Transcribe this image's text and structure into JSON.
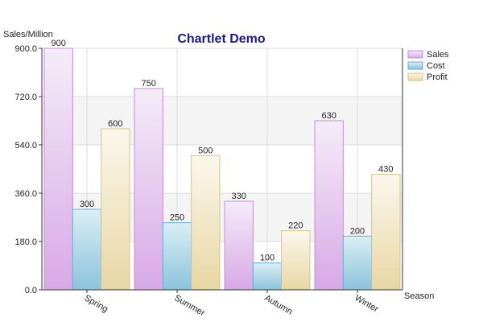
{
  "chart_data": {
    "type": "bar",
    "title": "Chartlet Demo",
    "ylabel": "Sales/Million",
    "xlabel": "Season",
    "categories": [
      "Spring",
      "Summer",
      "Autumn",
      "Winter"
    ],
    "series": [
      {
        "name": "Sales",
        "values": [
          900,
          750,
          330,
          630
        ],
        "color_top": "#f4ecf8",
        "color_bottom": "#d7a9e6",
        "stroke": "#c48bd8"
      },
      {
        "name": "Cost",
        "values": [
          300,
          250,
          100,
          200
        ],
        "color_top": "#daeef5",
        "color_bottom": "#8cc3db",
        "stroke": "#6aaed0"
      },
      {
        "name": "Profit",
        "values": [
          600,
          500,
          220,
          430
        ],
        "color_top": "#fbf7ec",
        "color_bottom": "#e8d7a4",
        "stroke": "#d9c483"
      }
    ],
    "ylim": [
      0,
      900
    ],
    "yticks": [
      "0.0",
      "180.0",
      "360.0",
      "540.0",
      "720.0",
      "900.0"
    ],
    "grid": true,
    "legend_position": "right"
  }
}
